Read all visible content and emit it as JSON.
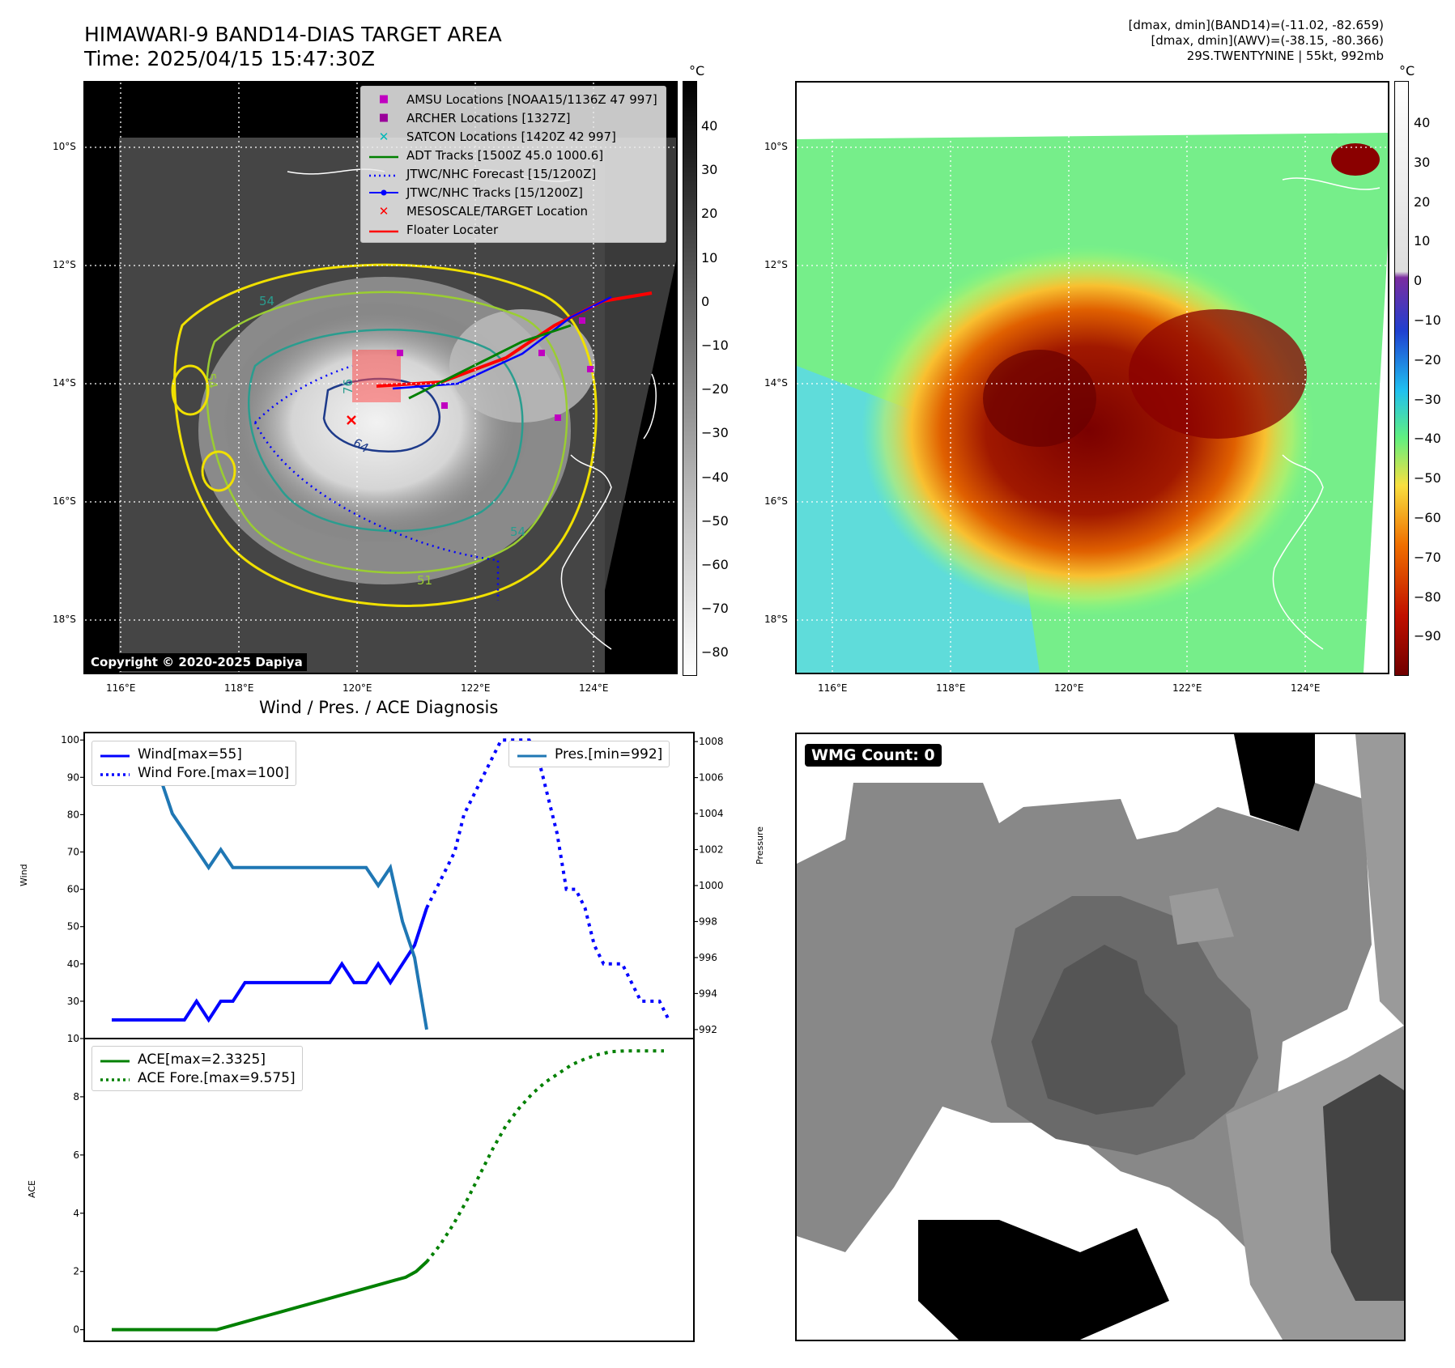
{
  "header": {
    "title_line1": "HIMAWARI-9 BAND14-DIAS TARGET AREA",
    "title_line2": "Time: 2025/04/15 15:47:30Z",
    "right_line1": "[dmax, dmin](BAND14)=(-11.02, -82.659)",
    "right_line2": "[dmax, dmin](AWV)=(-38.15, -80.366)",
    "right_line3": "29S.TWENTYNINE | 55kt, 992mb"
  },
  "map": {
    "lat_labels": [
      "10°S",
      "12°S",
      "14°S",
      "16°S",
      "18°S"
    ],
    "lon_labels": [
      "116°E",
      "118°E",
      "120°E",
      "122°E",
      "124°E"
    ],
    "copyright": "Copyright © 2020-2025 Dapiya",
    "legend": [
      {
        "label": "AMSU Locations [NOAA15/1136Z 47 997]",
        "color": "#c000c0",
        "symbol": "square"
      },
      {
        "label": "ARCHER Locations [1327Z]",
        "color": "#9a009a",
        "symbol": "square"
      },
      {
        "label": "SATCON Locations [1420Z 42 997]",
        "color": "#00b8b8",
        "symbol": "x"
      },
      {
        "label": "ADT Tracks [1500Z 45.0 1000.6]",
        "color": "#008000",
        "symbol": "line"
      },
      {
        "label": "JTWC/NHC Forecast [15/1200Z]",
        "color": "#0000ff",
        "symbol": "dotted"
      },
      {
        "label": "JTWC/NHC Tracks [15/1200Z]",
        "color": "#0000ff",
        "symbol": "line-dot"
      },
      {
        "label": "MESOSCALE/TARGET Location",
        "color": "#ff0000",
        "symbol": "x"
      },
      {
        "label": "Floater Locater",
        "color": "#ff0000",
        "symbol": "line"
      }
    ],
    "contour_labels": [
      "54",
      "76",
      "64",
      "54",
      "51",
      "54"
    ]
  },
  "colorbar_left": {
    "unit": "°C",
    "ticks": [
      "40",
      "30",
      "20",
      "10",
      "0",
      "−10",
      "−20",
      "−30",
      "−40",
      "−50",
      "−60",
      "−70",
      "−80"
    ]
  },
  "colorbar_right": {
    "unit": "°C",
    "ticks": [
      "40",
      "30",
      "20",
      "10",
      "0",
      "−10",
      "−20",
      "−30",
      "−40",
      "−50",
      "−60",
      "−70",
      "−80",
      "−90"
    ]
  },
  "diagnosis": {
    "title": "Wind / Pres. / ACE Diagnosis",
    "wind_ylabel": "Wind",
    "pres_ylabel": "Pressure",
    "ace_ylabel": "ACE",
    "wind_legend": [
      "Wind[max=55]",
      "Wind Fore.[max=100]"
    ],
    "pres_legend": [
      "Pres.[min=992]"
    ],
    "ace_legend": [
      "ACE[max=2.3325]",
      "ACE Fore.[max=9.575]"
    ]
  },
  "wmg": {
    "label": "WMG Count: 0"
  },
  "chart_data": [
    {
      "type": "line",
      "title": "Wind / Pres. / ACE Diagnosis",
      "ylabel": "Wind",
      "ylim": [
        20,
        102
      ],
      "yticks": [
        100,
        90,
        80,
        70,
        60,
        50,
        40,
        30
      ],
      "series": [
        {
          "name": "Wind[max=55]",
          "color": "#0000ff",
          "style": "solid",
          "values": [
            25,
            25,
            25,
            25,
            25,
            25,
            25,
            30,
            25,
            30,
            30,
            35,
            35,
            35,
            35,
            35,
            35,
            35,
            35,
            40,
            35,
            35,
            40,
            35,
            40,
            45,
            55
          ]
        },
        {
          "name": "Wind Fore.[max=100]",
          "color": "#0000ff",
          "style": "dotted",
          "values": [
            55,
            60,
            65,
            70,
            80,
            85,
            90,
            95,
            100,
            100,
            100,
            100,
            95,
            85,
            75,
            60,
            60,
            55,
            45,
            40,
            40,
            40,
            35,
            30,
            30,
            30,
            25
          ]
        }
      ]
    },
    {
      "type": "line",
      "ylabel": "Pressure",
      "ylim": [
        991.5,
        1008.5
      ],
      "yticks": [
        1008,
        1006,
        1004,
        1002,
        1000,
        998,
        996,
        994,
        992
      ],
      "series": [
        {
          "name": "Pres.[min=992]",
          "color": "#1f77b4",
          "style": "solid",
          "values": [
            1008,
            1007,
            1007,
            1006,
            1006,
            1004,
            1003,
            1002,
            1001,
            1002,
            1001,
            1001,
            1001,
            1001,
            1001,
            1001,
            1001,
            1001,
            1001,
            1001,
            1001,
            1001,
            1000,
            1001,
            998,
            996,
            992
          ]
        }
      ]
    },
    {
      "type": "line",
      "ylabel": "ACE",
      "ylim": [
        -0.4,
        10
      ],
      "yticks": [
        10,
        8,
        6,
        4,
        2,
        0
      ],
      "series": [
        {
          "name": "ACE[max=2.3325]",
          "color": "#008000",
          "style": "solid",
          "values": [
            0,
            0,
            0,
            0,
            0,
            0,
            0,
            0,
            0,
            0,
            0,
            0.1,
            0.2,
            0.3,
            0.4,
            0.5,
            0.6,
            0.7,
            0.8,
            0.9,
            1.0,
            1.1,
            1.2,
            1.3,
            1.4,
            1.5,
            1.6,
            1.7,
            1.8,
            2.0,
            2.3325
          ]
        },
        {
          "name": "ACE Fore.[max=9.575]",
          "color": "#008000",
          "style": "dotted",
          "values": [
            2.33,
            2.9,
            3.6,
            4.4,
            5.3,
            6.2,
            7.0,
            7.6,
            8.1,
            8.5,
            8.8,
            9.1,
            9.3,
            9.45,
            9.55,
            9.575,
            9.575,
            9.575,
            9.575
          ]
        }
      ]
    }
  ]
}
